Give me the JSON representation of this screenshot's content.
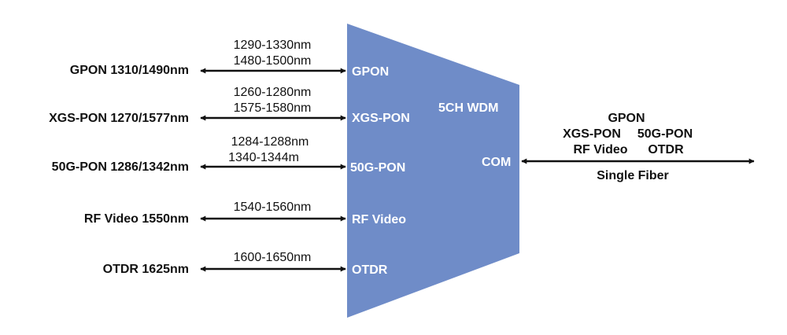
{
  "device": {
    "title": "5CH WDM",
    "com_label": "COM",
    "fill_color": "#6f8cc8"
  },
  "channels": [
    {
      "service": "GPON 1310/1490nm",
      "range1": "1290-1330nm",
      "range2": "1480-1500nm",
      "port": "GPON"
    },
    {
      "service": "XGS-PON 1270/1577nm",
      "range1": "1260-1280nm",
      "range2": "1575-1580nm",
      "port": "XGS-PON"
    },
    {
      "service": "50G-PON 1286/1342nm",
      "range1": "1284-1288nm",
      "range2": "1340-1344m",
      "port": "50G-PON"
    },
    {
      "service": "RF Video 1550nm",
      "range1": "1540-1560nm",
      "port": "RF Video"
    },
    {
      "service": "OTDR 1625nm",
      "range1": "1600-1650nm",
      "port": "OTDR"
    }
  ],
  "common": {
    "line1": "GPON",
    "line2a": "XGS-PON",
    "line2b": "50G-PON",
    "line3a": "RF Video",
    "line3b": "OTDR",
    "fiber_label": "Single Fiber"
  }
}
